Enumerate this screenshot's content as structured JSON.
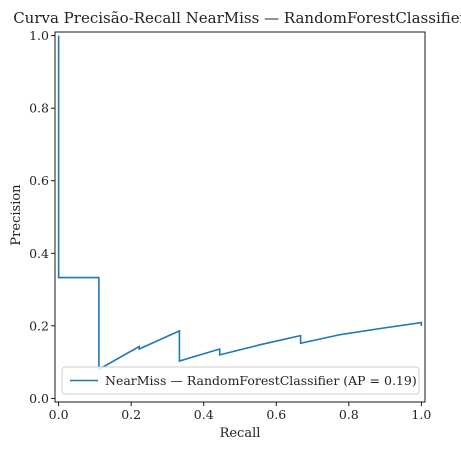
{
  "chart_data": {
    "type": "line",
    "title": "Curva Precisão-Recall NearMiss — RandomForestClassifier",
    "xlabel": "Recall",
    "ylabel": "Precision",
    "xlim": [
      -0.01,
      1.01
    ],
    "ylim": [
      -0.01,
      1.01
    ],
    "xticks": [
      0.0,
      0.2,
      0.4,
      0.6,
      0.8,
      1.0
    ],
    "xtick_labels": [
      "0.0",
      "0.2",
      "0.4",
      "0.6",
      "0.8",
      "1.0"
    ],
    "yticks": [
      0.0,
      0.2,
      0.4,
      0.6,
      0.8,
      1.0
    ],
    "ytick_labels": [
      "0.0",
      "0.2",
      "0.4",
      "0.6",
      "0.8",
      "1.0"
    ],
    "grid": false,
    "legend_position": "lower-right",
    "series": [
      {
        "name": "NearMiss — RandomForestClassifier (AP = 0.19)",
        "color": "#1f77b4",
        "drawstyle": "steps-post",
        "x": [
          0.0,
          0.0,
          0.111,
          0.111,
          0.222,
          0.222,
          0.333,
          0.333,
          0.444,
          0.444,
          0.556,
          0.556,
          0.667,
          0.667,
          0.778,
          0.778,
          0.889,
          0.889,
          1.0,
          1.0
        ],
        "y": [
          1.0,
          0.333,
          0.333,
          0.08,
          0.143,
          0.136,
          0.186,
          0.103,
          0.136,
          0.12,
          0.148,
          0.148,
          0.173,
          0.152,
          0.176,
          0.176,
          0.193,
          0.193,
          0.209,
          0.2
        ]
      }
    ]
  }
}
